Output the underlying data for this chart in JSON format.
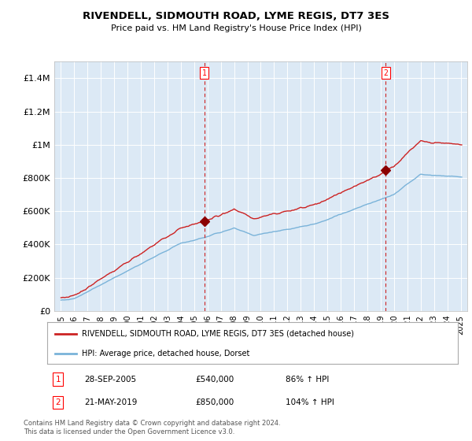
{
  "title": "RIVENDELL, SIDMOUTH ROAD, LYME REGIS, DT7 3ES",
  "subtitle": "Price paid vs. HM Land Registry's House Price Index (HPI)",
  "ylim": [
    0,
    1500000
  ],
  "yticks": [
    0,
    200000,
    400000,
    600000,
    800000,
    1000000,
    1200000,
    1400000
  ],
  "ytick_labels": [
    "£0",
    "£200K",
    "£400K",
    "£600K",
    "£800K",
    "£1M",
    "£1.2M",
    "£1.4M"
  ],
  "plot_bg_color": "#dce9f5",
  "hpi_color": "#7ab3d9",
  "sale_color": "#cc2222",
  "vline_color": "#cc2222",
  "marker_color": "#8b0000",
  "legend_label_sale": "RIVENDELL, SIDMOUTH ROAD, LYME REGIS, DT7 3ES (detached house)",
  "legend_label_hpi": "HPI: Average price, detached house, Dorset",
  "sale1_year": 2005.75,
  "sale1_price": 540000,
  "sale1_label": "1",
  "sale1_date": "28-SEP-2005",
  "sale1_pct": "86%",
  "sale2_year": 2019.38,
  "sale2_price": 850000,
  "sale2_label": "2",
  "sale2_date": "21-MAY-2019",
  "sale2_pct": "104%",
  "footer": "Contains HM Land Registry data © Crown copyright and database right 2024.\nThis data is licensed under the Open Government Licence v3.0.",
  "xmin": 1995,
  "xmax": 2025
}
